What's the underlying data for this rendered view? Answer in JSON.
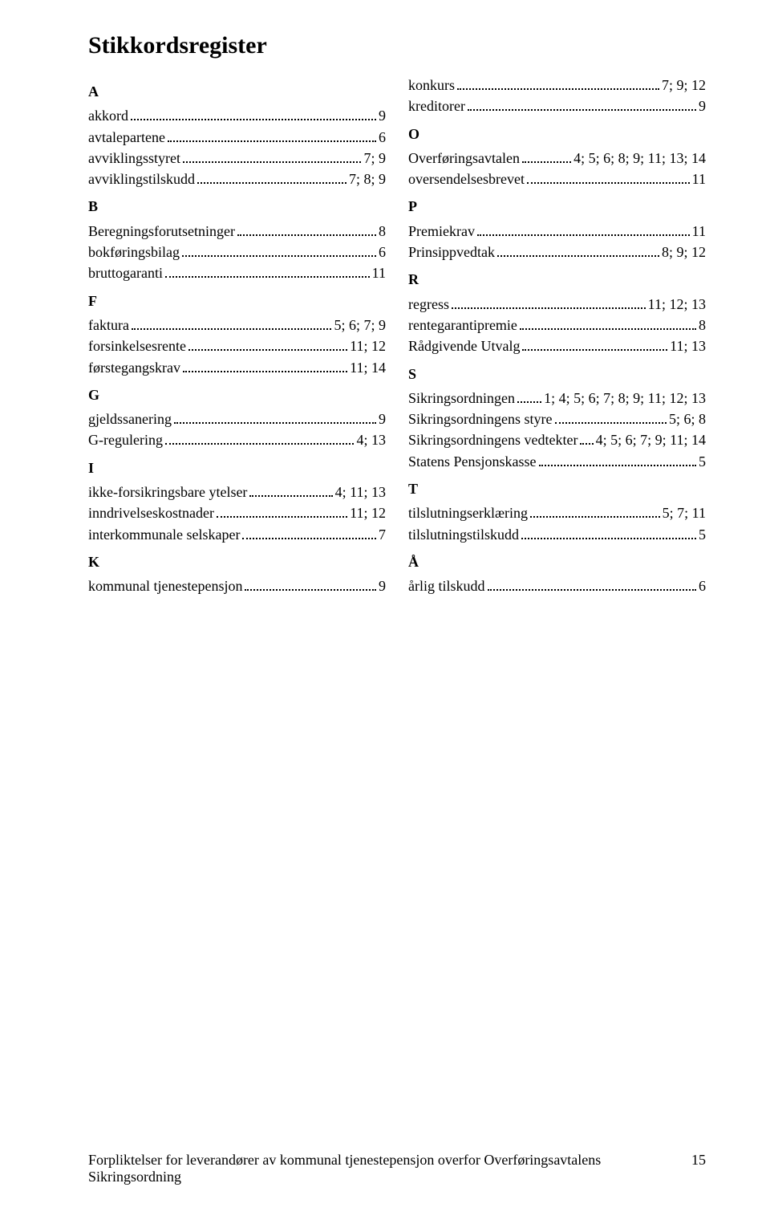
{
  "title": "Stikkordsregister",
  "footer": {
    "text": "Forpliktelser for leverandører av kommunal tjenestepensjon overfor Overføringsavtalens Sikringsordning",
    "page": "15"
  },
  "left": [
    {
      "type": "letter",
      "label": "A"
    },
    {
      "type": "entry",
      "term": "akkord",
      "page": "9"
    },
    {
      "type": "entry",
      "term": "avtalepartene",
      "page": "6"
    },
    {
      "type": "entry",
      "term": "avviklingsstyret",
      "page": "7; 9"
    },
    {
      "type": "entry",
      "term": "avviklingstilskudd",
      "page": "7; 8; 9"
    },
    {
      "type": "letter",
      "label": "B"
    },
    {
      "type": "entry",
      "term": "Beregningsforutsetninger",
      "page": "8"
    },
    {
      "type": "entry",
      "term": "bokføringsbilag",
      "page": "6"
    },
    {
      "type": "entry",
      "term": "bruttogaranti",
      "page": "11"
    },
    {
      "type": "letter",
      "label": "F"
    },
    {
      "type": "entry",
      "term": "faktura",
      "page": "5; 6; 7; 9"
    },
    {
      "type": "entry",
      "term": "forsinkelsesrente",
      "page": "11; 12"
    },
    {
      "type": "entry",
      "term": "førstegangskrav",
      "page": "11; 14"
    },
    {
      "type": "letter",
      "label": "G"
    },
    {
      "type": "entry",
      "term": "gjeldssanering",
      "page": "9"
    },
    {
      "type": "entry",
      "term": "G-regulering",
      "page": "4; 13"
    },
    {
      "type": "letter",
      "label": "I"
    },
    {
      "type": "entry",
      "term": "ikke-forsikringsbare ytelser",
      "page": "4; 11; 13"
    },
    {
      "type": "entry",
      "term": "inndrivelseskostnader",
      "page": "11; 12"
    },
    {
      "type": "entry",
      "term": "interkommunale selskaper",
      "page": "7"
    },
    {
      "type": "letter",
      "label": "K"
    },
    {
      "type": "entry",
      "term": "kommunal tjenestepensjon",
      "page": "9"
    }
  ],
  "right": [
    {
      "type": "entry",
      "term": "konkurs",
      "page": "7; 9; 12"
    },
    {
      "type": "entry",
      "term": "kreditorer",
      "page": "9"
    },
    {
      "type": "letter",
      "label": "O"
    },
    {
      "type": "entry",
      "term": "Overføringsavtalen",
      "page": "4; 5; 6; 8; 9; 11; 13; 14"
    },
    {
      "type": "entry",
      "term": "oversendelsesbrevet",
      "page": "11"
    },
    {
      "type": "letter",
      "label": "P"
    },
    {
      "type": "entry",
      "term": "Premiekrav",
      "page": "11"
    },
    {
      "type": "entry",
      "term": "Prinsippvedtak",
      "page": "8; 9; 12"
    },
    {
      "type": "letter",
      "label": "R"
    },
    {
      "type": "entry",
      "term": "regress",
      "page": "11; 12; 13"
    },
    {
      "type": "entry",
      "term": "rentegarantipremie",
      "page": "8"
    },
    {
      "type": "entry",
      "term": "Rådgivende Utvalg",
      "page": "11; 13"
    },
    {
      "type": "letter",
      "label": "S"
    },
    {
      "type": "entry",
      "term": "Sikringsordningen",
      "page": "1; 4; 5; 6; 7; 8; 9; 11; 12; 13"
    },
    {
      "type": "entry",
      "term": "Sikringsordningens styre",
      "page": "5; 6; 8"
    },
    {
      "type": "entry",
      "term": "Sikringsordningens vedtekter",
      "page": "4; 5; 6; 7; 9; 11; 14"
    },
    {
      "type": "entry",
      "term": "Statens Pensjonskasse",
      "page": "5"
    },
    {
      "type": "letter",
      "label": "T"
    },
    {
      "type": "entry",
      "term": "tilslutningserklæring",
      "page": "5; 7; 11"
    },
    {
      "type": "entry",
      "term": "tilslutningstilskudd",
      "page": "5"
    },
    {
      "type": "letter",
      "label": "Å"
    },
    {
      "type": "entry",
      "term": "årlig tilskudd",
      "page": "6"
    }
  ]
}
